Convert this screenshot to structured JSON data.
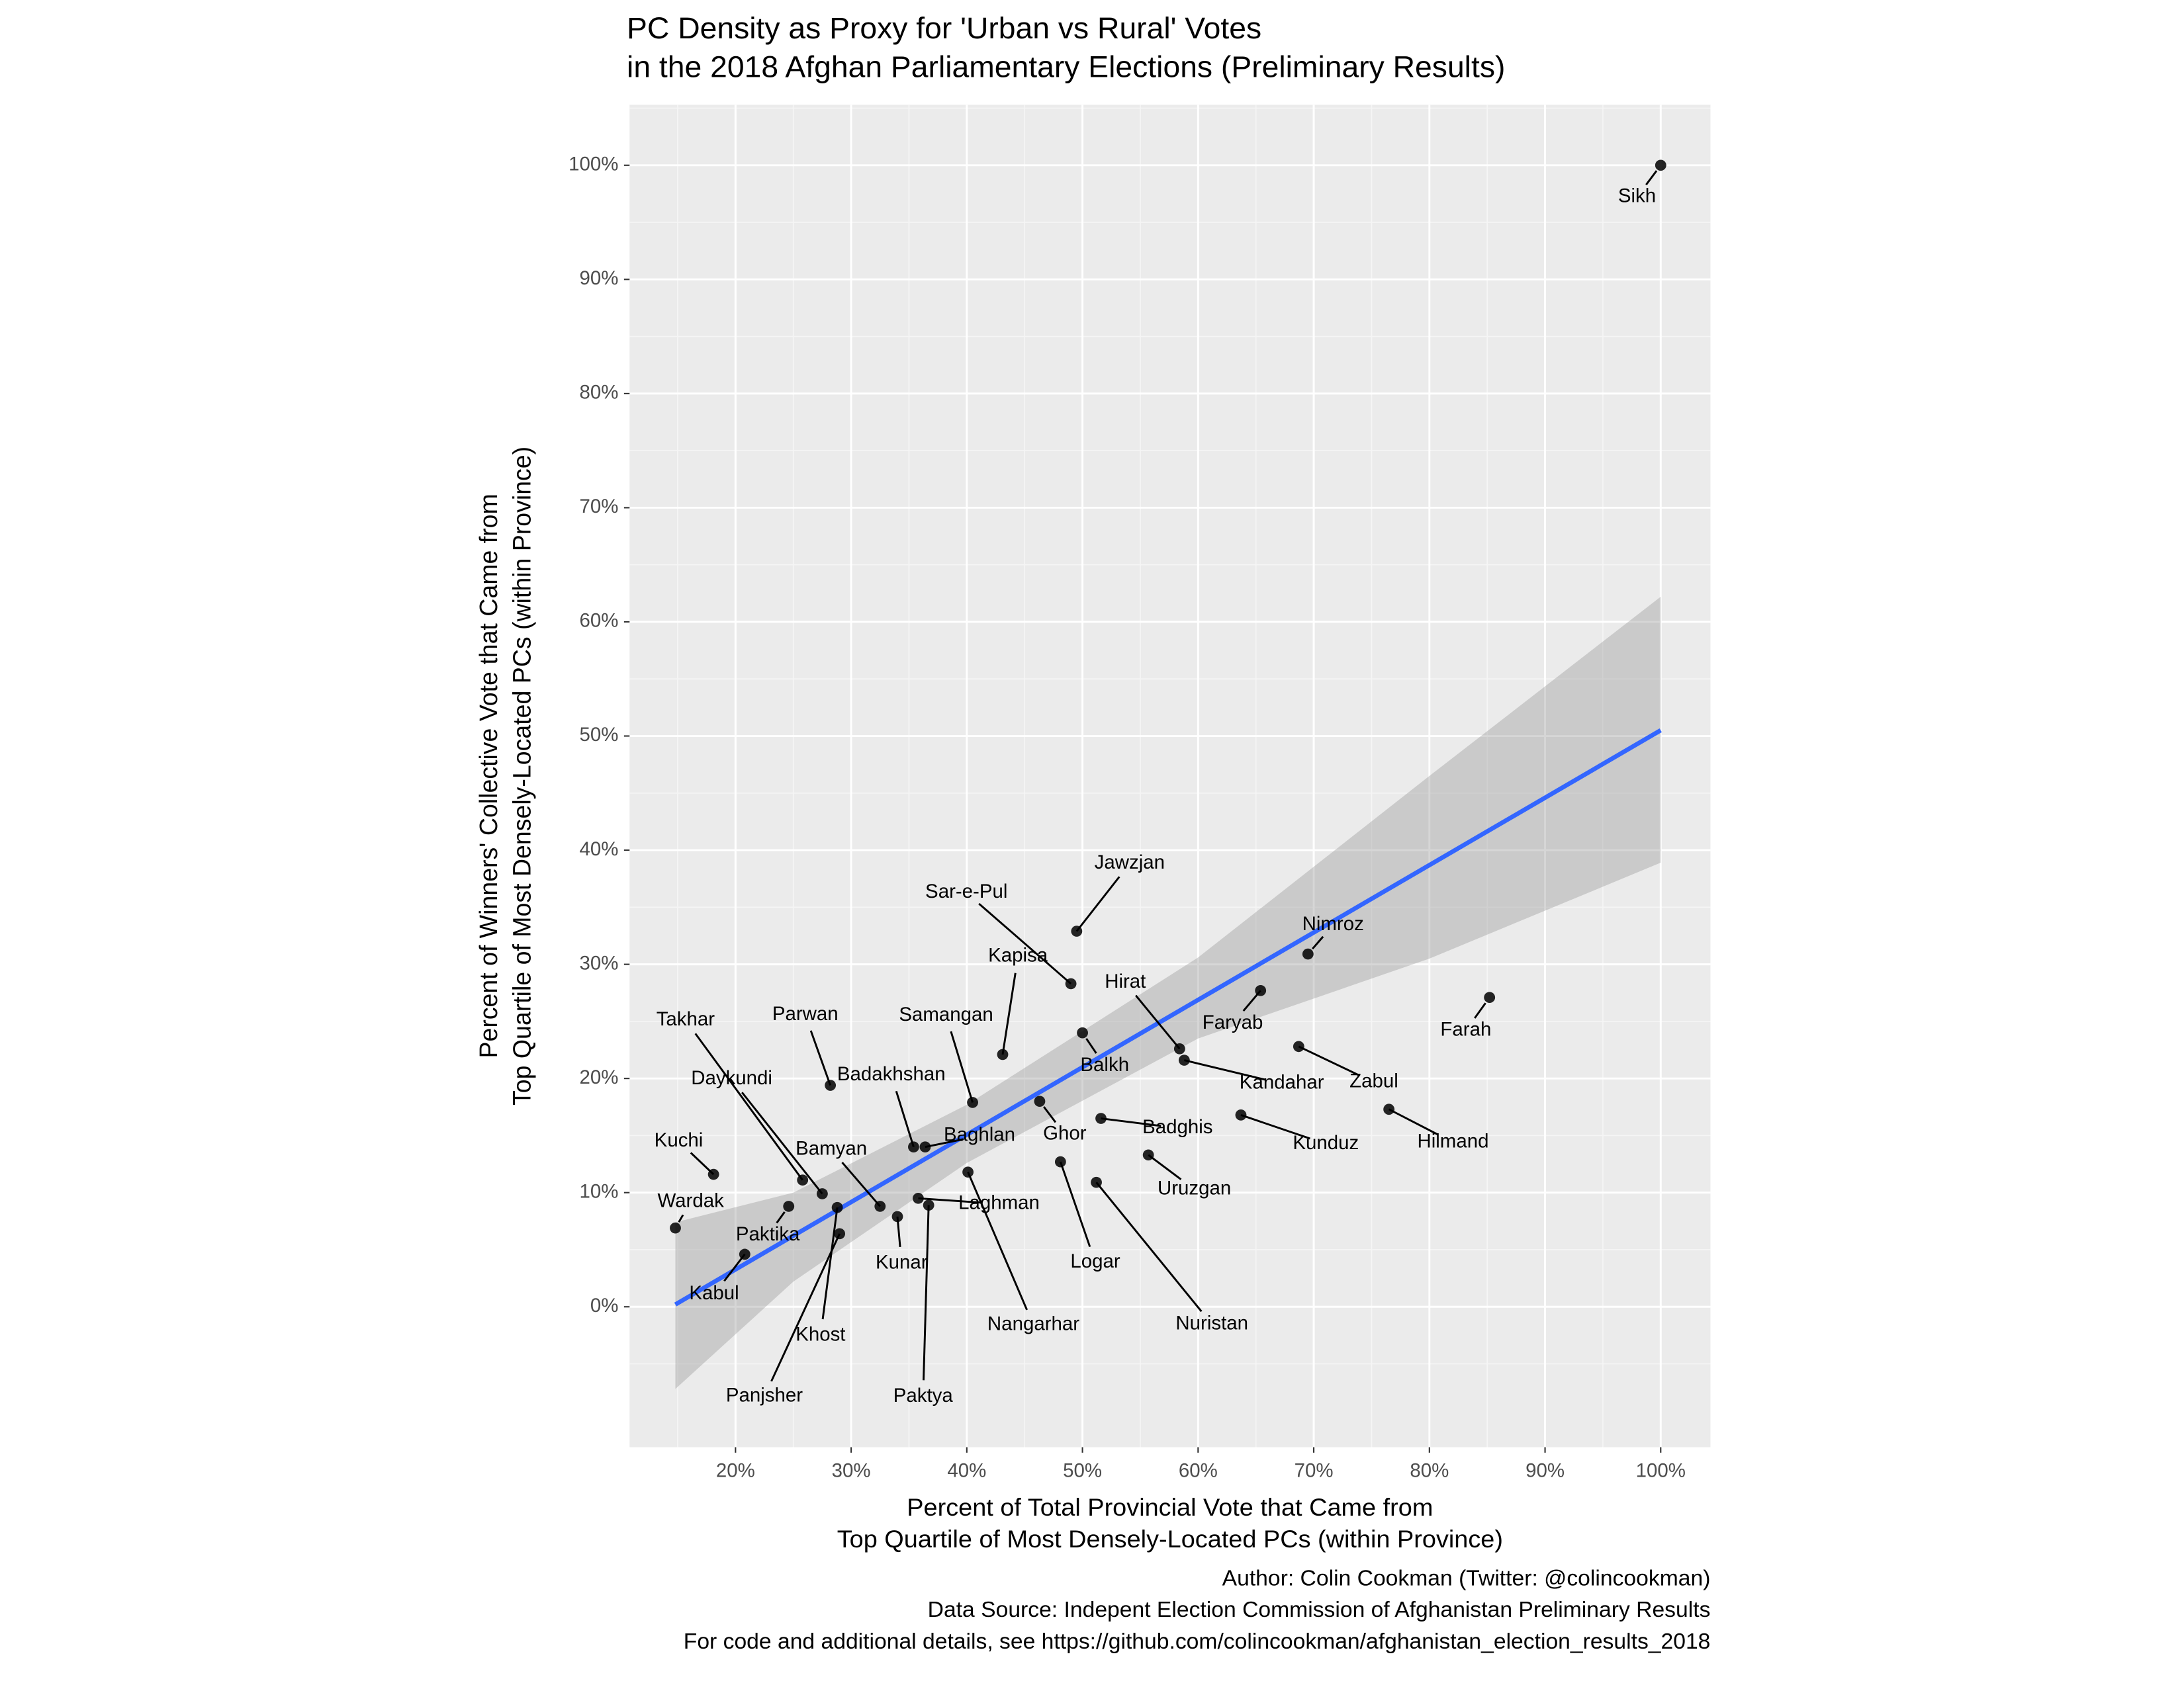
{
  "chart_data": {
    "type": "scatter",
    "title_lines": [
      "PC Density as Proxy for 'Urban vs Rural' Votes",
      "in the 2018 Afghan Parliamentary Elections (Preliminary Results)"
    ],
    "x_label_lines": [
      "Percent of Total Provincial Vote that Came from",
      "Top Quartile of Most Densely-Located PCs (within Province)"
    ],
    "y_label_lines": [
      "Percent of Winners' Collective Vote that Came from",
      "Top Quartile of Most Densely-Located PCs (within Province)"
    ],
    "caption_lines": [
      "Author: Colin Cookman (Twitter: @colincookman)",
      "Data Source: Indepent Election Commission of Afghanistan Preliminary Results",
      "For code and additional details, see https://github.com/colincookman/afghanistan_election_results_2018"
    ],
    "xlim": [
      10.84,
      104.3
    ],
    "ylim": [
      -12.3,
      105.3
    ],
    "xticks": [
      {
        "value": 20,
        "label": "20%"
      },
      {
        "value": 30,
        "label": "30%"
      },
      {
        "value": 40,
        "label": "40%"
      },
      {
        "value": 50,
        "label": "50%"
      },
      {
        "value": 60,
        "label": "60%"
      },
      {
        "value": 70,
        "label": "70%"
      },
      {
        "value": 80,
        "label": "80%"
      },
      {
        "value": 90,
        "label": "90%"
      },
      {
        "value": 100,
        "label": "100%"
      }
    ],
    "yticks": [
      {
        "value": 0,
        "label": "0%"
      },
      {
        "value": 10,
        "label": "10%"
      },
      {
        "value": 20,
        "label": "20%"
      },
      {
        "value": 30,
        "label": "30%"
      },
      {
        "value": 40,
        "label": "40%"
      },
      {
        "value": 50,
        "label": "50%"
      },
      {
        "value": 60,
        "label": "60%"
      },
      {
        "value": 70,
        "label": "70%"
      },
      {
        "value": 80,
        "label": "80%"
      },
      {
        "value": 90,
        "label": "90%"
      },
      {
        "value": 100,
        "label": "100%"
      }
    ],
    "grid": true,
    "points": {
      "color": "#000000",
      "labels": [
        "Sikh",
        "Jawzjan",
        "Sar-e-Pul",
        "Nimroz",
        "Farah",
        "Faryab",
        "Kapisa",
        "Hirat",
        "Kandahar",
        "Zabul",
        "Balkh",
        "Parwan",
        "Samangan",
        "Ghor",
        "Badghis",
        "Kunduz",
        "Hilmand",
        "Badakhshan",
        "Baghlan",
        "Uruzgan",
        "Logar",
        "Nuristan",
        "Nangarhar",
        "Kuchi",
        "Takhar",
        "Daykundi",
        "Laghman",
        "Paktya",
        "Bamyan",
        "Wardak",
        "Paktika",
        "Khost",
        "Kunar",
        "Panjsher",
        "Kabul"
      ],
      "x": [
        100,
        49.5,
        49.0,
        69.5,
        85.2,
        65.4,
        43.1,
        58.4,
        58.8,
        68.7,
        50.0,
        28.2,
        40.5,
        46.3,
        51.6,
        63.7,
        76.5,
        35.4,
        36.4,
        55.7,
        48.1,
        51.2,
        40.1,
        18.1,
        25.8,
        27.5,
        35.8,
        36.7,
        32.5,
        14.8,
        24.6,
        28.8,
        34.0,
        29.0,
        20.8
      ],
      "values": [
        100,
        32.9,
        28.3,
        30.9,
        27.1,
        27.7,
        22.1,
        22.6,
        21.6,
        22.8,
        24.0,
        19.4,
        17.9,
        18.0,
        16.5,
        16.8,
        17.3,
        14.0,
        14.0,
        13.3,
        12.7,
        10.9,
        11.8,
        11.6,
        11.1,
        9.9,
        9.5,
        8.9,
        8.8,
        6.9,
        8.8,
        8.7,
        7.9,
        6.4,
        4.6
      ]
    },
    "fit": {
      "color": "#3366ff",
      "x": [
        14.8,
        100
      ],
      "values": [
        0.2,
        50.5
      ]
    },
    "band": {
      "color": "#999999",
      "x": [
        14.8,
        25,
        40,
        60,
        80,
        100
      ],
      "lower": [
        -7.2,
        2.2,
        12.6,
        23.5,
        30.5,
        38.9
      ],
      "upper": [
        7.4,
        10.0,
        17.7,
        30.6,
        46.5,
        62.2
      ]
    }
  }
}
